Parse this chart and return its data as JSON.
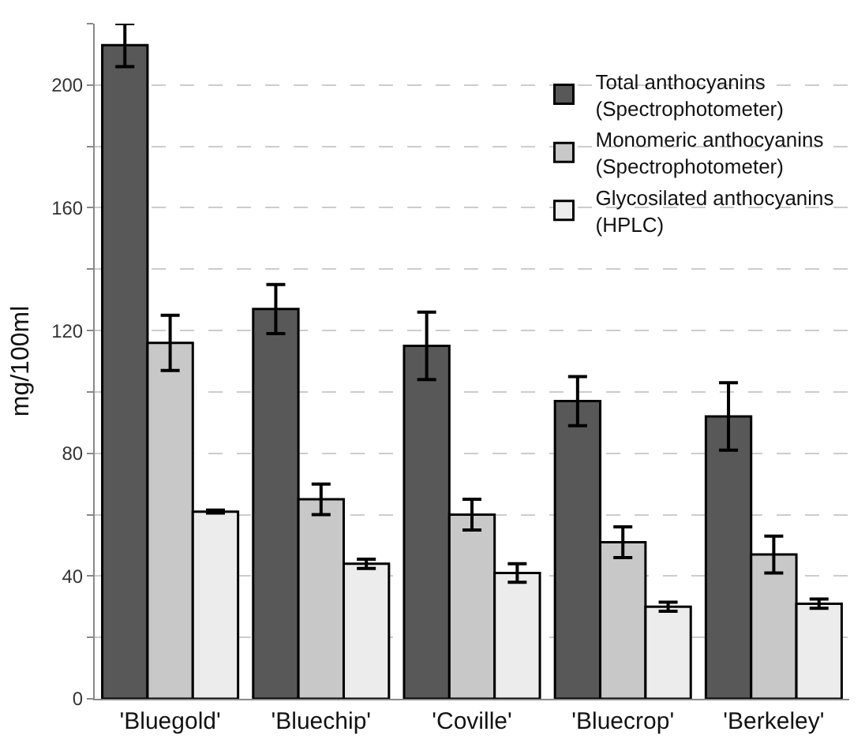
{
  "chart_data": {
    "type": "bar",
    "ylabel": "mg/100ml",
    "categories": [
      "'Bluegold'",
      "'Bluechip'",
      "'Coville'",
      "'Bluecrop'",
      "'Berkeley'"
    ],
    "series": [
      {
        "name": "Total anthocyanins\n(Spectrophotometer)",
        "color": "#585858",
        "values": [
          213,
          127,
          115,
          97,
          92
        ],
        "errors": [
          7,
          8,
          11,
          8,
          11
        ]
      },
      {
        "name": "Monomeric anthocyanins\n(Spectrophotometer)",
        "color": "#c8c8c8",
        "values": [
          116,
          65,
          60,
          51,
          47
        ],
        "errors": [
          9,
          5,
          5,
          5,
          6
        ]
      },
      {
        "name": "Glycosilated anthocyanins\n(HPLC)",
        "color": "#ececec",
        "values": [
          61,
          44,
          41,
          30,
          31
        ],
        "errors": [
          0.5,
          1.5,
          3,
          1.5,
          1.5
        ]
      }
    ],
    "ylim": [
      0,
      220
    ],
    "yticks": [
      0,
      {
        "value": 20,
        "label": null
      },
      40,
      {
        "value": 60,
        "label": null
      },
      80,
      {
        "value": 100,
        "label": null
      },
      120,
      {
        "value": 140,
        "label": null
      },
      160,
      {
        "value": 180,
        "label": null
      },
      200,
      {
        "value": 220,
        "label": null
      }
    ],
    "grid": "y",
    "legend": "top right"
  }
}
